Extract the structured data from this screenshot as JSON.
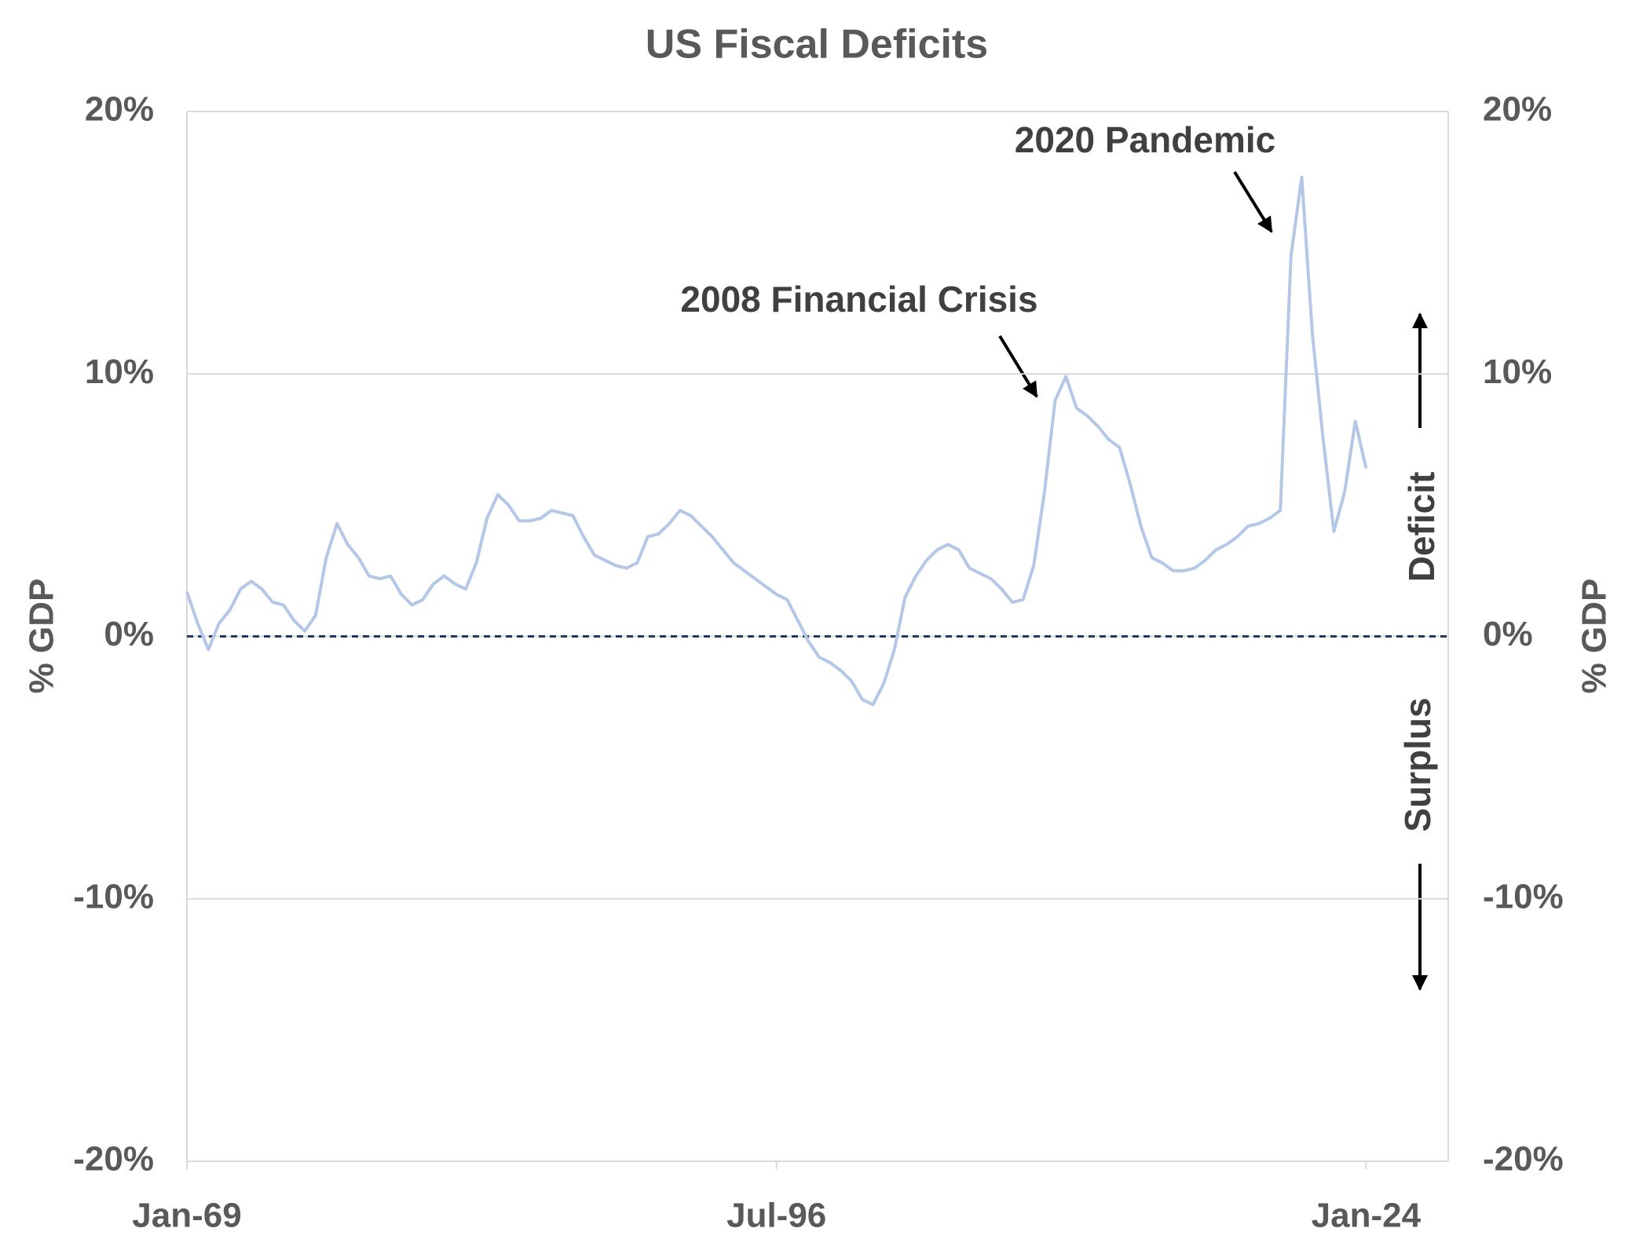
{
  "chart_data": {
    "type": "line",
    "title": "US Fiscal Deficits",
    "y_label": "% GDP",
    "y2_label": "% GDP",
    "annotations": [
      "2020 Pandemic",
      "2008 Financial Crisis",
      "Deficit",
      "Surplus"
    ],
    "x": [
      "1969-01",
      "1969-07",
      "1970-01",
      "1970-07",
      "1971-01",
      "1971-07",
      "1972-01",
      "1972-07",
      "1973-01",
      "1973-07",
      "1974-01",
      "1974-07",
      "1975-01",
      "1975-07",
      "1976-01",
      "1976-07",
      "1977-01",
      "1977-07",
      "1978-01",
      "1978-07",
      "1979-01",
      "1979-07",
      "1980-01",
      "1980-07",
      "1981-01",
      "1981-07",
      "1982-01",
      "1982-07",
      "1983-01",
      "1983-07",
      "1984-01",
      "1984-07",
      "1985-01",
      "1985-07",
      "1986-01",
      "1986-07",
      "1987-01",
      "1987-07",
      "1988-01",
      "1988-07",
      "1989-01",
      "1989-07",
      "1990-01",
      "1990-07",
      "1991-01",
      "1991-07",
      "1992-01",
      "1992-07",
      "1993-01",
      "1993-07",
      "1994-01",
      "1994-07",
      "1995-01",
      "1995-07",
      "1996-01",
      "1996-07",
      "1997-01",
      "1997-07",
      "1998-01",
      "1998-07",
      "1999-01",
      "1999-07",
      "2000-01",
      "2000-07",
      "2001-01",
      "2001-07",
      "2002-01",
      "2002-07",
      "2003-01",
      "2003-07",
      "2004-01",
      "2004-07",
      "2005-01",
      "2005-07",
      "2006-01",
      "2006-07",
      "2007-01",
      "2007-07",
      "2008-01",
      "2008-07",
      "2009-01",
      "2009-07",
      "2010-01",
      "2010-07",
      "2011-01",
      "2011-07",
      "2012-01",
      "2012-07",
      "2013-01",
      "2013-07",
      "2014-01",
      "2014-07",
      "2015-01",
      "2015-07",
      "2016-01",
      "2016-07",
      "2017-01",
      "2017-07",
      "2018-01",
      "2018-07",
      "2019-01",
      "2019-07",
      "2020-01",
      "2020-07",
      "2021-01",
      "2021-07",
      "2022-01",
      "2022-07",
      "2023-01",
      "2023-07",
      "2024-01"
    ],
    "values": [
      1.7,
      0.5,
      -0.5,
      0.5,
      1.0,
      1.8,
      2.1,
      1.8,
      1.3,
      1.2,
      0.6,
      0.2,
      0.8,
      3.0,
      4.3,
      3.5,
      3.0,
      2.3,
      2.2,
      2.3,
      1.6,
      1.2,
      1.4,
      2.0,
      2.3,
      2.0,
      1.8,
      2.8,
      4.5,
      5.4,
      5.0,
      4.4,
      4.4,
      4.5,
      4.8,
      4.7,
      4.6,
      3.8,
      3.1,
      2.9,
      2.7,
      2.6,
      2.8,
      3.8,
      3.9,
      4.3,
      4.8,
      4.6,
      4.2,
      3.8,
      3.3,
      2.8,
      2.5,
      2.2,
      1.9,
      1.6,
      1.4,
      0.6,
      -0.2,
      -0.8,
      -1.0,
      -1.3,
      -1.7,
      -2.4,
      -2.6,
      -1.8,
      -0.5,
      1.5,
      2.3,
      2.9,
      3.3,
      3.5,
      3.3,
      2.6,
      2.4,
      2.2,
      1.8,
      1.3,
      1.4,
      2.7,
      5.5,
      9.0,
      9.9,
      8.7,
      8.4,
      8.0,
      7.5,
      7.2,
      5.8,
      4.2,
      3.0,
      2.8,
      2.5,
      2.5,
      2.6,
      2.9,
      3.3,
      3.5,
      3.8,
      4.2,
      4.3,
      4.5,
      4.8,
      14.5,
      17.5,
      11.5,
      7.5,
      4.0,
      5.5,
      8.2,
      6.4
    ],
    "color": "#b4c7e7",
    "xlim": [
      "1969-01",
      "2027-11"
    ],
    "xticks": [
      {
        "value": "1969-01",
        "label": "Jan-69"
      },
      {
        "value": "1996-07",
        "label": "Jul-96"
      },
      {
        "value": "2024-01",
        "label": "Jan-24"
      }
    ],
    "ylim": [
      -20,
      20
    ],
    "yticks": [
      {
        "value": -20,
        "label": "-20%"
      },
      {
        "value": -10,
        "label": "-10%"
      },
      {
        "value": 0,
        "label": "0%"
      },
      {
        "value": 10,
        "label": "10%"
      },
      {
        "value": 20,
        "label": "20%"
      }
    ],
    "y2lim": [
      -20,
      20
    ],
    "y2ticks": [
      {
        "value": -20,
        "label": "-20%"
      },
      {
        "value": -10,
        "label": "-10%"
      },
      {
        "value": 0,
        "label": "0%"
      },
      {
        "value": 10,
        "label": "10%"
      },
      {
        "value": 20,
        "label": "20%"
      }
    ],
    "grid": true
  }
}
